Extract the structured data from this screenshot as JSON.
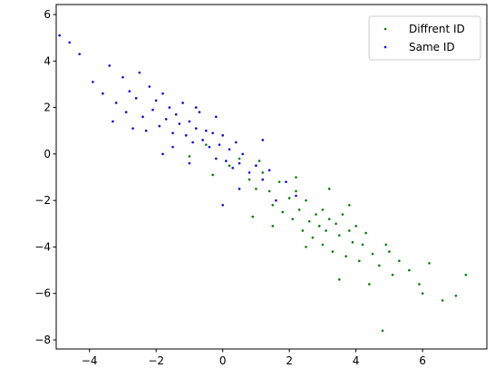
{
  "chart_data": {
    "type": "scatter",
    "xlim": [
      -5.0,
      7.93
    ],
    "ylim": [
      -8.39,
      6.43
    ],
    "xticks": [
      {
        "value": -4,
        "label": "−4"
      },
      {
        "value": -2,
        "label": "−2"
      },
      0,
      2,
      4,
      6
    ],
    "yticks": [
      {
        "value": -8,
        "label": "−8"
      },
      {
        "value": -6,
        "label": "−6"
      },
      {
        "value": -4,
        "label": "−4"
      },
      {
        "value": -2,
        "label": "−2"
      },
      0,
      2,
      4,
      6
    ],
    "grid": false,
    "legend": "upper right",
    "series": [
      {
        "name": "Diffrent ID",
        "color": "#008000",
        "x": [
          0.2,
          0.5,
          0.8,
          1.0,
          1.2,
          1.4,
          1.5,
          1.7,
          1.8,
          2.0,
          2.1,
          2.2,
          2.3,
          2.4,
          2.5,
          2.6,
          2.7,
          2.8,
          2.9,
          3.0,
          3.0,
          3.1,
          3.2,
          3.3,
          3.4,
          3.5,
          3.6,
          3.7,
          3.8,
          3.9,
          4.0,
          4.1,
          4.2,
          4.3,
          4.5,
          4.7,
          4.9,
          5.1,
          5.3,
          5.6,
          5.9,
          6.2,
          6.6,
          7.0,
          7.3,
          4.8,
          3.5,
          2.5,
          1.5,
          -0.5,
          -0.3,
          3.8,
          2.2,
          1.1,
          4.4,
          5.0,
          6.0,
          -1.0,
          0.9,
          3.2
        ],
        "y": [
          -0.5,
          -0.2,
          -1.1,
          -1.5,
          -0.8,
          -1.6,
          -2.2,
          -1.2,
          -2.5,
          -1.9,
          -2.8,
          -1.6,
          -2.4,
          -3.3,
          -2.0,
          -2.9,
          -3.6,
          -2.6,
          -3.1,
          -3.9,
          -2.4,
          -3.3,
          -2.8,
          -4.2,
          -3.0,
          -3.5,
          -2.6,
          -4.4,
          -3.3,
          -3.8,
          -3.1,
          -4.6,
          -3.9,
          -3.4,
          -4.3,
          -4.8,
          -3.9,
          -5.2,
          -4.6,
          -5.0,
          -5.6,
          -4.7,
          -6.3,
          -6.1,
          -5.2,
          -7.6,
          -5.4,
          -4.0,
          -3.1,
          0.4,
          -0.9,
          -2.2,
          -1.0,
          -0.3,
          -5.6,
          -4.2,
          -6.0,
          -0.1,
          -2.7,
          -1.5
        ]
      },
      {
        "name": "Same ID",
        "color": "#0000ff",
        "x": [
          -4.9,
          -4.6,
          -4.3,
          -3.9,
          -3.6,
          -3.4,
          -3.2,
          -3.0,
          -2.9,
          -2.8,
          -2.6,
          -2.5,
          -2.4,
          -2.2,
          -2.1,
          -2.0,
          -1.9,
          -1.8,
          -1.7,
          -1.6,
          -1.5,
          -1.4,
          -1.3,
          -1.2,
          -1.1,
          -1.0,
          -0.9,
          -0.8,
          -0.7,
          -0.6,
          -0.5,
          -0.4,
          -0.3,
          -0.2,
          -0.1,
          0.0,
          0.1,
          0.2,
          0.3,
          0.4,
          0.5,
          0.6,
          0.8,
          1.0,
          1.2,
          1.4,
          1.6,
          1.9,
          -2.3,
          -1.5,
          -0.8,
          -0.2,
          0.5,
          -3.3,
          -1.0,
          -2.7,
          0.0,
          1.2,
          -1.8,
          2.2
        ],
        "y": [
          5.1,
          4.8,
          4.3,
          3.1,
          2.6,
          3.8,
          2.2,
          3.3,
          1.8,
          2.7,
          2.4,
          3.5,
          1.6,
          2.9,
          1.9,
          2.3,
          1.2,
          2.6,
          1.5,
          2.0,
          0.9,
          1.7,
          1.3,
          2.2,
          0.8,
          1.4,
          0.5,
          1.1,
          1.8,
          0.6,
          1.0,
          0.3,
          0.9,
          -0.2,
          0.4,
          0.8,
          -0.3,
          0.2,
          -0.6,
          0.5,
          -0.4,
          0.0,
          -0.8,
          -0.5,
          -1.1,
          -0.7,
          -2.0,
          -1.2,
          1.0,
          0.3,
          2.0,
          1.6,
          -1.5,
          1.4,
          -0.4,
          1.1,
          -2.2,
          0.6,
          0.0,
          -1.8
        ]
      }
    ]
  }
}
